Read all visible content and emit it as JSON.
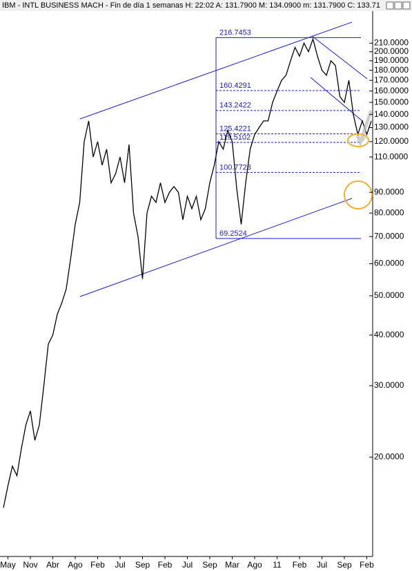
{
  "chart_data": {
    "type": "line",
    "title": "IBM - INTL BUSINESS MACH - Fin de día 1 semanas H: 22:02 A: 131.7900 M: 134.0900 m: 131.7900 C: 133.71",
    "categories": [
      null,
      "May",
      null,
      null,
      null,
      null,
      "Nov",
      null,
      null,
      null,
      null,
      "Abr",
      null,
      null,
      null,
      null,
      "Ago",
      null,
      null,
      null,
      null,
      "Feb",
      null,
      null,
      null,
      null,
      "Jul",
      null,
      null,
      null,
      null,
      "Sep",
      null,
      null,
      null,
      null,
      "Feb",
      null,
      null,
      null,
      null,
      "Jul",
      null,
      null,
      null,
      null,
      "Sep",
      null,
      null,
      null,
      null,
      "Mar",
      null,
      null,
      null,
      null,
      "Ago",
      null,
      null,
      null,
      null,
      "11",
      null,
      null,
      null,
      null,
      "Feb",
      null,
      null,
      null,
      null,
      "Jul",
      null,
      null,
      null,
      null,
      "Sep",
      null,
      null,
      null,
      null,
      "Feb",
      null
    ],
    "series": [
      {
        "name": "IBM",
        "color": "#000000",
        "values": [
          15,
          17,
          19,
          18,
          21,
          24,
          26,
          22,
          24,
          30,
          38,
          40,
          45,
          48,
          52,
          62,
          75,
          85,
          120,
          135,
          110,
          120,
          105,
          115,
          95,
          100,
          110,
          95,
          118,
          80,
          70,
          55,
          80,
          88,
          85,
          95,
          85,
          90,
          93,
          90,
          77,
          88,
          82,
          88,
          77,
          82,
          95,
          105,
          120,
          115,
          128,
          120,
          92,
          75,
          95,
          115,
          125,
          130,
          135,
          135,
          150,
          160,
          170,
          175,
          190,
          205,
          195,
          210,
          200,
          215,
          195,
          180,
          175,
          190,
          185,
          155,
          150,
          170,
          140,
          125,
          135,
          125,
          135
        ]
      }
    ],
    "log_scale": true,
    "ylim": [
      11.6,
      250
    ],
    "yticks": [
      {
        "value": 20,
        "label": "20.0000"
      },
      {
        "value": 30,
        "label": "30.0000"
      },
      {
        "value": 40,
        "label": "40.0000"
      },
      {
        "value": 50,
        "label": "50.0000"
      },
      {
        "value": 60,
        "label": "60.0000"
      },
      {
        "value": 70,
        "label": "70.0000"
      },
      {
        "value": 80,
        "label": "80.0000"
      },
      {
        "value": 90,
        "label": "90.0000"
      },
      {
        "value": 110,
        "label": "110.0000"
      },
      {
        "value": 120,
        "label": "120.0000"
      },
      {
        "value": 130,
        "label": "130.0000"
      },
      {
        "value": 140,
        "label": "140.0000"
      },
      {
        "value": 150,
        "label": "150.0000"
      },
      {
        "value": 160,
        "label": "160.0000"
      },
      {
        "value": 170,
        "label": "170.0000"
      },
      {
        "value": 180,
        "label": "180.0000"
      },
      {
        "value": 190,
        "label": "190.0000"
      },
      {
        "value": 200,
        "label": "200.0000"
      },
      {
        "value": 210,
        "label": "210.0000"
      }
    ],
    "fib_levels": [
      216.7453,
      160.4291,
      143.2422,
      125.4221,
      119.5102,
      100.7723,
      69.2524
    ],
    "fib_color": "#1a1acc"
  }
}
